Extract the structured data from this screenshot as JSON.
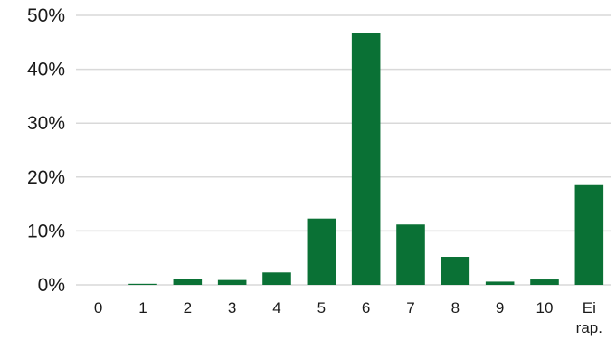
{
  "chart_data": {
    "type": "bar",
    "title": "",
    "xlabel": "",
    "ylabel": "",
    "categories": [
      [
        "0"
      ],
      [
        "1"
      ],
      [
        "2"
      ],
      [
        "3"
      ],
      [
        "4"
      ],
      [
        "5"
      ],
      [
        "6"
      ],
      [
        "7"
      ],
      [
        "8"
      ],
      [
        "9"
      ],
      [
        "10"
      ],
      [
        "Ei",
        "rap."
      ]
    ],
    "values": [
      0.0,
      0.2,
      1.1,
      0.9,
      2.3,
      12.3,
      46.8,
      11.2,
      5.2,
      0.6,
      1.0,
      18.5
    ],
    "y_ticks": [
      "0%",
      "10%",
      "20%",
      "30%",
      "40%",
      "50%"
    ],
    "ylim": [
      0,
      50
    ],
    "grid": true,
    "legend": "none",
    "bar_color": "#0a7135"
  }
}
